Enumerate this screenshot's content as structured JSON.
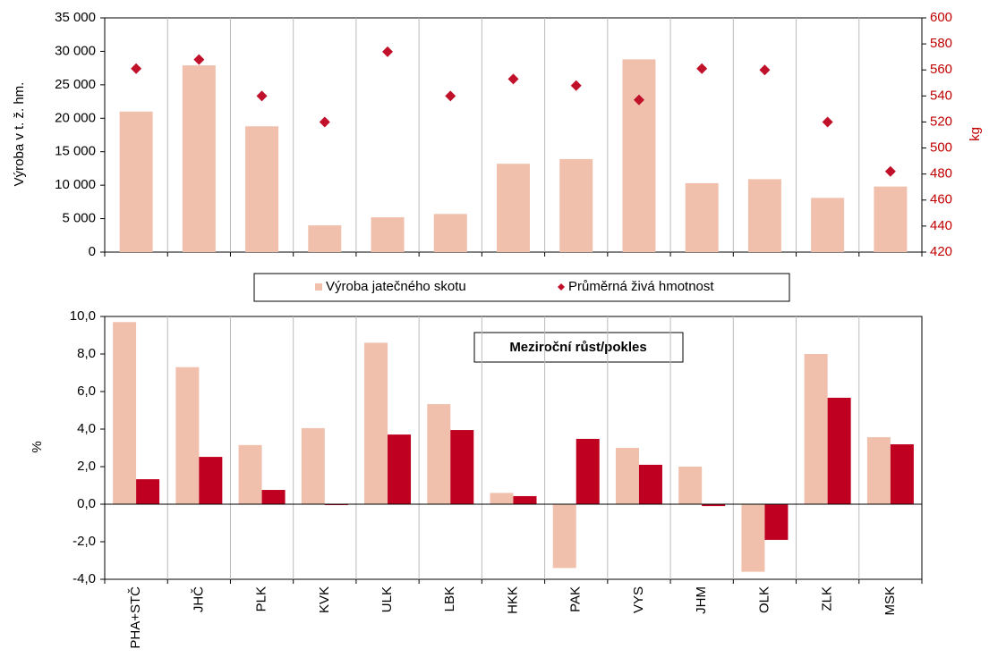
{
  "chart_data": [
    {
      "type": "bar",
      "ylabel": "Výroba v t. ž. hm.",
      "y2label": "kg",
      "ylim": [
        0,
        35000
      ],
      "yticks": [
        0,
        {
          "value": 5000,
          "label": "5 000"
        },
        {
          "value": 10000,
          "label": "10 000"
        },
        {
          "value": 15000,
          "label": "15 000"
        },
        {
          "value": 20000,
          "label": "20 000"
        },
        {
          "value": 25000,
          "label": "25 000"
        },
        {
          "value": 30000,
          "label": "30 000"
        },
        {
          "value": 35000,
          "label": "35 000"
        }
      ],
      "y2lim": [
        420,
        600
      ],
      "y2ticks": [
        420,
        440,
        460,
        480,
        500,
        520,
        540,
        560,
        580,
        600
      ],
      "series": [
        {
          "name": "Výroba jatečného skotu",
          "color": "#f0c0ad",
          "values": [
            21000,
            27900,
            18800,
            4000,
            5200,
            5700,
            13200,
            13900,
            28800,
            10300,
            10900,
            8100,
            9800
          ]
        },
        {
          "name": "Průměrná živá hmotnost",
          "color": "#c0102a",
          "axis": "y2",
          "marker": "diamond",
          "values": [
            561,
            568,
            540,
            520,
            574,
            540,
            553,
            548,
            537,
            561,
            560,
            520,
            482
          ]
        }
      ]
    },
    {
      "type": "bar",
      "ylabel": "%",
      "annotation": "Meziroční růst/pokles",
      "categories": [
        "PHA+STČ",
        "JHČ",
        "PLK",
        "KVK",
        "ULK",
        "LBK",
        "HKK",
        "PAK",
        "VYS",
        "JHM",
        "OLK",
        "ZLK",
        "MSK"
      ],
      "ylim": [
        -4,
        10
      ],
      "yticks": [
        {
          "value": -4,
          "label": "-4,0"
        },
        {
          "value": -2,
          "label": "-2,0"
        },
        {
          "value": 0,
          "label": "0,0"
        },
        {
          "value": 2,
          "label": "2,0"
        },
        {
          "value": 4,
          "label": "4,0"
        },
        {
          "value": 6,
          "label": "6,0"
        },
        {
          "value": 8,
          "label": "8,0"
        },
        {
          "value": 10,
          "label": "10,0"
        }
      ],
      "series": [
        {
          "color": "#f0c0ad",
          "values": [
            9.7,
            7.3,
            3.15,
            4.05,
            8.6,
            5.33,
            0.6,
            -3.4,
            3.0,
            2.0,
            -3.6,
            8.0,
            3.57
          ]
        },
        {
          "color": "#c00020",
          "values": [
            1.33,
            2.52,
            0.76,
            -0.05,
            3.71,
            3.95,
            0.43,
            3.48,
            2.1,
            -0.1,
            -1.9,
            5.67,
            3.19
          ]
        }
      ]
    }
  ]
}
